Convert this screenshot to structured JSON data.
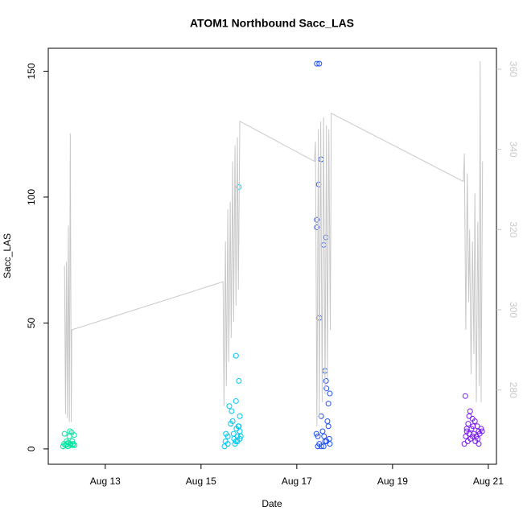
{
  "chart_data": {
    "type": "scatter",
    "title": "ATOM1 Northbound Sacc_LAS",
    "x_label": "Date",
    "y_label": "Sacc_LAS",
    "xlim": [
      11.81,
      21.17
    ],
    "xticks": [
      {
        "value": 13,
        "label": "Aug 13"
      },
      {
        "value": 15,
        "label": "Aug 15"
      },
      {
        "value": 17,
        "label": "Aug 17"
      },
      {
        "value": 19,
        "label": "Aug 19"
      },
      {
        "value": 21,
        "label": "Aug 21"
      }
    ],
    "ylim": [
      -6.1,
      159.1
    ],
    "yticks": [
      0,
      50,
      100,
      150
    ],
    "y2lim": [
      261.5,
      365.2
    ],
    "y2ticks": [
      280,
      300,
      320,
      340,
      360
    ],
    "y2_color": "#c8c8c8",
    "series": [
      {
        "color": "#00e6a0",
        "x": [
          12.12,
          12.14,
          12.15,
          12.17,
          12.19,
          12.2,
          12.22,
          12.23,
          12.25,
          12.26,
          12.27,
          12.28,
          12.3,
          12.31,
          12.32,
          12.33,
          12.35,
          12.36
        ],
        "values": [
          1,
          2,
          6,
          1.5,
          3,
          2,
          1,
          2.5,
          5,
          7,
          1.5,
          2,
          6.5,
          3,
          1.5,
          2,
          5.5,
          1.5
        ]
      },
      {
        "color": "#00c8f0",
        "x": [
          15.49,
          15.51,
          15.52,
          15.56,
          15.56,
          15.59,
          15.64,
          15.62,
          15.66,
          15.68,
          15.69,
          15.71,
          15.74,
          15.73,
          15.73,
          15.73,
          15.76,
          15.78,
          15.79,
          15.81,
          15.79,
          15.81,
          15.81,
          15.76,
          15.79,
          15.83
        ],
        "values": [
          1,
          3,
          6,
          2,
          5,
          17,
          15,
          10,
          11,
          6,
          4,
          2,
          8,
          3,
          37,
          19,
          5,
          9,
          27,
          13,
          104,
          4,
          7,
          3,
          9,
          5
        ]
      },
      {
        "color": "#1e50f0",
        "x": [
          17.42,
          17.47,
          17.51,
          17.46,
          17.42,
          17.42,
          17.61,
          17.56,
          17.47,
          17.59,
          17.61,
          17.62,
          17.69,
          17.66,
          17.51,
          17.64,
          17.66,
          17.41,
          17.44,
          17.54,
          17.57,
          17.59,
          17.68,
          17.47,
          17.51,
          17.44,
          17.69,
          17.62,
          17.56
        ],
        "values": [
          153,
          153,
          115,
          105,
          91,
          88,
          84,
          81,
          52,
          31,
          27,
          24,
          22,
          18,
          13,
          11,
          9,
          6,
          5,
          7,
          5,
          3,
          4,
          2,
          1,
          1,
          2,
          3,
          1
        ]
      },
      {
        "color": "#7a1ef0",
        "x": [
          20.52,
          20.62,
          20.6,
          20.72,
          20.67,
          20.77,
          20.58,
          20.65,
          20.55,
          20.82,
          20.53,
          20.63,
          20.57,
          20.5,
          20.85,
          20.8,
          20.7,
          20.75,
          20.68,
          20.78,
          20.73,
          20.8,
          20.87,
          20.6,
          20.55,
          20.67
        ],
        "values": [
          21,
          15,
          13,
          11,
          12,
          9,
          10,
          8,
          7,
          6,
          5,
          4,
          3,
          2,
          8,
          7,
          6,
          5,
          9,
          4,
          3,
          2,
          7,
          6,
          8,
          5
        ]
      },
      {
        "type": "line",
        "axis": "y2",
        "color": "#c8c8c8",
        "x": [
          12.15,
          12.17,
          12.19,
          12.21,
          12.23,
          12.25,
          12.27,
          12.29,
          12.3,
          15.46,
          15.48,
          15.51,
          15.53,
          15.56,
          15.58,
          15.61,
          15.63,
          15.66,
          15.68,
          15.71,
          15.73,
          15.76,
          15.78,
          15.81,
          17.37,
          17.39,
          17.42,
          17.45,
          17.47,
          17.5,
          17.53,
          17.56,
          17.59,
          17.62,
          17.64,
          17.67,
          17.7,
          17.72,
          20.48,
          20.5,
          20.53,
          20.56,
          20.59,
          20.61,
          20.64,
          20.67,
          20.7,
          20.72,
          20.75,
          20.78,
          20.81,
          20.83,
          20.85,
          20.88
        ],
        "values": [
          311,
          274,
          312,
          273,
          321,
          272,
          344,
          272,
          295,
          307,
          276,
          317,
          281,
          325,
          287,
          327,
          293,
          337,
          297,
          341,
          301,
          343,
          305,
          347,
          337,
          342,
          271,
          345,
          273,
          347,
          277,
          348,
          279,
          346,
          283,
          345,
          295,
          349,
          332,
          339,
          295,
          334,
          302,
          320,
          284,
          317,
          289,
          329,
          277,
          322,
          281,
          362,
          277,
          337
        ]
      }
    ]
  }
}
